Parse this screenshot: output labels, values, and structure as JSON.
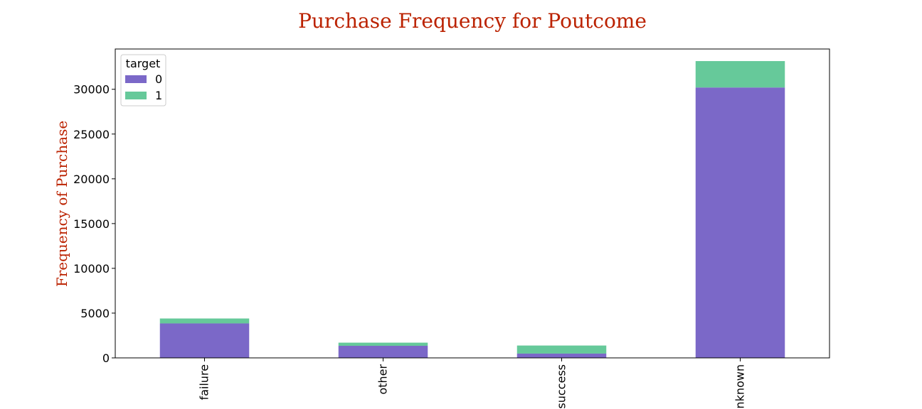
{
  "chart_data": {
    "type": "bar",
    "stacked": true,
    "title": "Purchase Frequency for Poutcome",
    "xlabel": "",
    "ylabel": "Frequency of Purchase",
    "categories": [
      "failure",
      "other",
      "success",
      "unknown"
    ],
    "series": [
      {
        "name": "0",
        "values": [
          3850,
          1350,
          480,
          30200
        ],
        "color": "#7b68c8"
      },
      {
        "name": "1",
        "values": [
          550,
          350,
          900,
          2950
        ],
        "color": "#66c99a"
      }
    ],
    "ylim": [
      0,
      34500
    ],
    "yticks": [
      0,
      5000,
      10000,
      15000,
      20000,
      25000,
      30000
    ],
    "legend": {
      "title": "target",
      "placement": "top-left"
    },
    "grid": false,
    "title_color": "#bb2200",
    "ylabel_color": "#bb2200"
  }
}
